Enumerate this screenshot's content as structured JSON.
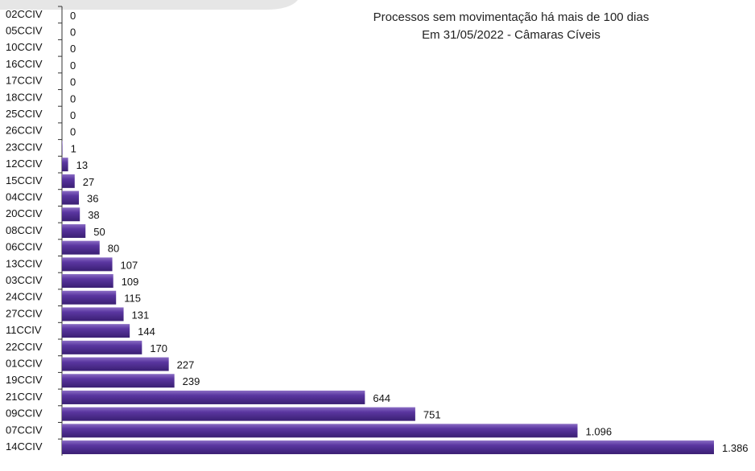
{
  "chart_data": {
    "type": "bar",
    "orientation": "horizontal",
    "title": "Processos sem movimentação há mais de 100 dias",
    "subtitle": "Em 31/05/2022 - Câmaras Cíveis",
    "categories": [
      "02CCIV",
      "05CCIV",
      "10CCIV",
      "16CCIV",
      "17CCIV",
      "18CCIV",
      "25CCIV",
      "26CCIV",
      "23CCIV",
      "12CCIV",
      "15CCIV",
      "04CCIV",
      "20CCIV",
      "08CCIV",
      "06CCIV",
      "13CCIV",
      "03CCIV",
      "24CCIV",
      "27CCIV",
      "11CCIV",
      "22CCIV",
      "01CCIV",
      "19CCIV",
      "21CCIV",
      "09CCIV",
      "07CCIV",
      "14CCIV"
    ],
    "values": [
      0,
      0,
      0,
      0,
      0,
      0,
      0,
      0,
      1,
      13,
      27,
      36,
      38,
      50,
      80,
      107,
      109,
      115,
      131,
      144,
      170,
      227,
      239,
      644,
      751,
      1096,
      1386
    ],
    "value_labels": [
      "0",
      "0",
      "0",
      "0",
      "0",
      "0",
      "0",
      "0",
      "1",
      "13",
      "27",
      "36",
      "38",
      "50",
      "80",
      "107",
      "109",
      "115",
      "131",
      "144",
      "170",
      "227",
      "239",
      "644",
      "751",
      "1.096",
      "1.386"
    ],
    "color": "#4b2c8c"
  }
}
